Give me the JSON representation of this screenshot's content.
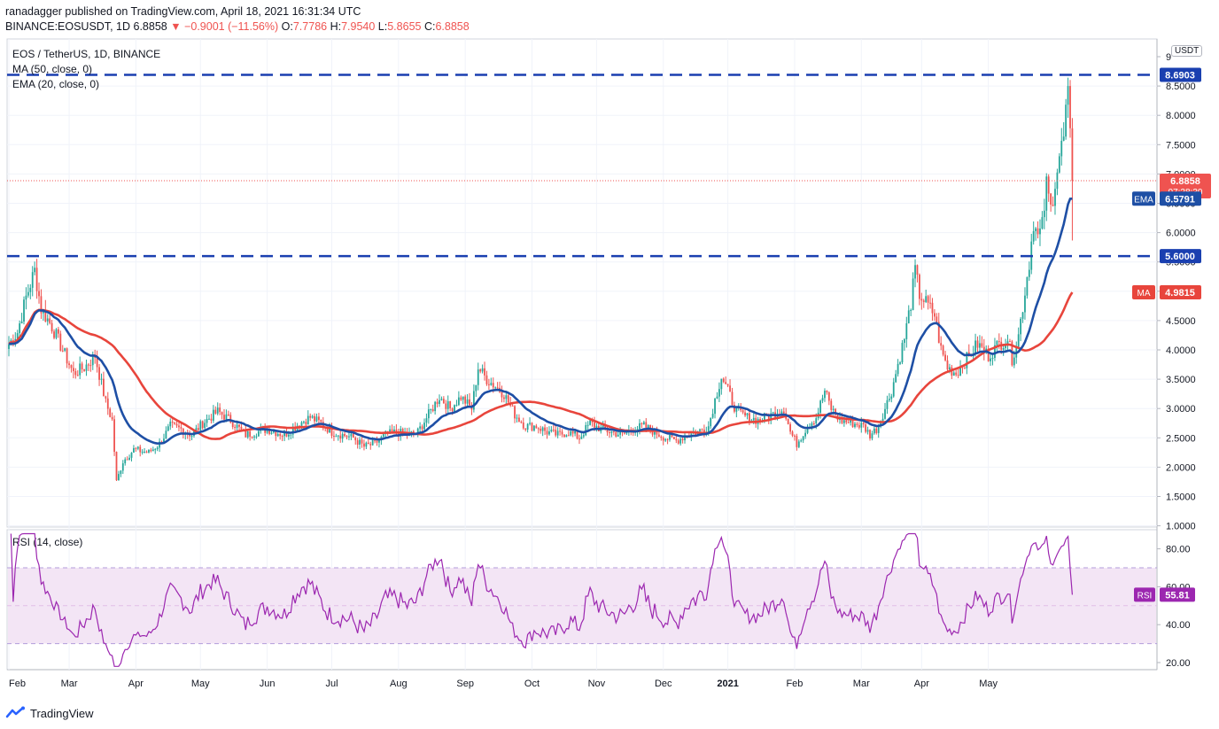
{
  "header": {
    "line1": "ranadagger published on TradingView.com, April 18, 2021 16:31:34 UTC",
    "symbol": "BINANCE:EOSUSDT, 1D",
    "last": "6.8858",
    "change": "▼ −0.9001 (−11.56%)",
    "o_label": "O:",
    "o": "7.7786",
    "h_label": "H:",
    "h": "7.9540",
    "l_label": "L:",
    "l": "5.8655",
    "c_label": "C:",
    "c": "6.8858"
  },
  "legend": {
    "title": "EOS / TetherUS, 1D, BINANCE",
    "ma": "MA (50, close, 0)",
    "ema": "EMA (20, close, 0)"
  },
  "currency": "USDT",
  "branding": "TradingView",
  "colors": {
    "up": "#26a69a",
    "down": "#ef5350",
    "ema": "#1e4fa5",
    "ma": "#e8453c",
    "level": "#1a3fb0",
    "rsi_line": "#9c27b0",
    "rsi_band": "#f3e5f5"
  },
  "chart_data": [
    {
      "type": "candlestick",
      "title": "EOS / TetherUS, 1D, BINANCE",
      "x_labels": [
        "Feb",
        "Mar",
        "Apr",
        "May",
        "Jun",
        "Jul",
        "Aug",
        "Sep",
        "Oct",
        "Nov",
        "Dec",
        "2021",
        "Feb",
        "Mar",
        "Apr",
        "May"
      ],
      "y_ticks": [
        "1.0000",
        "1.5000",
        "2.0000",
        "2.5000",
        "3.0000",
        "3.5000",
        "4.0000",
        "4.5000",
        "5.0000",
        "5.5000",
        "6.0000",
        "6.5000",
        "7.0000",
        "7.5000",
        "8.0000",
        "8.5000",
        "9"
      ],
      "ylim": [
        1.0,
        9.0
      ],
      "price_path": [
        [
          0,
          4.1
        ],
        [
          4,
          4.3
        ],
        [
          8,
          4.9
        ],
        [
          12,
          5.35
        ],
        [
          15,
          4.7
        ],
        [
          20,
          4.4
        ],
        [
          25,
          4.0
        ],
        [
          30,
          3.6
        ],
        [
          35,
          3.7
        ],
        [
          40,
          3.9
        ],
        [
          45,
          3.1
        ],
        [
          48,
          2.8
        ],
        [
          50,
          1.75
        ],
        [
          53,
          2.1
        ],
        [
          58,
          2.3
        ],
        [
          65,
          2.25
        ],
        [
          70,
          2.4
        ],
        [
          75,
          2.7
        ],
        [
          80,
          2.65
        ],
        [
          85,
          2.55
        ],
        [
          90,
          2.75
        ],
        [
          97,
          2.95
        ],
        [
          103,
          2.8
        ],
        [
          110,
          2.55
        ],
        [
          115,
          2.6
        ],
        [
          120,
          2.65
        ],
        [
          128,
          2.55
        ],
        [
          135,
          2.75
        ],
        [
          140,
          2.85
        ],
        [
          145,
          2.75
        ],
        [
          150,
          2.6
        ],
        [
          155,
          2.55
        ],
        [
          160,
          2.5
        ],
        [
          165,
          2.35
        ],
        [
          170,
          2.4
        ],
        [
          175,
          2.55
        ],
        [
          180,
          2.6
        ],
        [
          185,
          2.55
        ],
        [
          190,
          2.6
        ],
        [
          195,
          2.9
        ],
        [
          200,
          3.2
        ],
        [
          205,
          3.0
        ],
        [
          210,
          3.2
        ],
        [
          215,
          3.0
        ],
        [
          218,
          3.7
        ],
        [
          222,
          3.5
        ],
        [
          227,
          3.35
        ],
        [
          230,
          3.25
        ],
        [
          235,
          2.9
        ],
        [
          240,
          2.7
        ],
        [
          245,
          2.7
        ],
        [
          250,
          2.6
        ],
        [
          255,
          2.55
        ],
        [
          260,
          2.6
        ],
        [
          265,
          2.5
        ],
        [
          270,
          2.75
        ],
        [
          275,
          2.65
        ],
        [
          280,
          2.6
        ],
        [
          285,
          2.55
        ],
        [
          290,
          2.65
        ],
        [
          295,
          2.7
        ],
        [
          300,
          2.6
        ],
        [
          305,
          2.5
        ],
        [
          310,
          2.45
        ],
        [
          315,
          2.55
        ],
        [
          320,
          2.6
        ],
        [
          325,
          2.7
        ],
        [
          328,
          3.15
        ],
        [
          331,
          3.55
        ],
        [
          334,
          3.3
        ],
        [
          338,
          2.95
        ],
        [
          343,
          2.85
        ],
        [
          348,
          2.8
        ],
        [
          355,
          2.9
        ],
        [
          360,
          3.0
        ],
        [
          363,
          2.6
        ],
        [
          366,
          2.4
        ],
        [
          371,
          2.7
        ],
        [
          375,
          2.85
        ],
        [
          379,
          3.3
        ],
        [
          382,
          3.0
        ],
        [
          386,
          2.8
        ],
        [
          392,
          2.75
        ],
        [
          397,
          2.7
        ],
        [
          400,
          2.55
        ],
        [
          403,
          2.65
        ],
        [
          407,
          3.0
        ],
        [
          410,
          3.3
        ],
        [
          413,
          3.75
        ],
        [
          416,
          4.2
        ],
        [
          419,
          4.8
        ],
        [
          421,
          5.35
        ],
        [
          423,
          4.95
        ],
        [
          426,
          4.8
        ],
        [
          430,
          4.6
        ],
        [
          433,
          4.0
        ],
        [
          436,
          3.7
        ],
        [
          440,
          3.6
        ],
        [
          445,
          3.85
        ],
        [
          450,
          4.1
        ],
        [
          455,
          3.9
        ],
        [
          460,
          4.1
        ],
        [
          464,
          4.2
        ],
        [
          466,
          3.85
        ],
        [
          469,
          4.25
        ],
        [
          472,
          5.0
        ],
        [
          474,
          5.5
        ],
        [
          476,
          6.2
        ],
        [
          478,
          5.9
        ],
        [
          480,
          6.1
        ],
        [
          482,
          6.8
        ],
        [
          484,
          6.4
        ],
        [
          486,
          6.9
        ],
        [
          488,
          7.3
        ],
        [
          490,
          7.6
        ],
        [
          492,
          8.5
        ],
        [
          493,
          7.78
        ],
        [
          494,
          6.8858
        ]
      ],
      "ema_label": "EMA",
      "ema_last": "6.5791",
      "ma_label": "MA",
      "ma_last": "4.9815",
      "last_price_label": "6.8858",
      "countdown": "07:28:30",
      "levels": [
        {
          "value": 8.6903,
          "label": "8.6903"
        },
        {
          "value": 5.6,
          "label": "5.6000"
        }
      ]
    },
    {
      "type": "line",
      "title": "RSI (14, close)",
      "y_ticks": [
        "20.00",
        "40.00",
        "60.00",
        "80.00"
      ],
      "ylim": [
        15,
        90
      ],
      "band": [
        30,
        70
      ],
      "last_label": "RSI",
      "last_value": "55.81",
      "note": "RSI is derived from the price series"
    }
  ]
}
